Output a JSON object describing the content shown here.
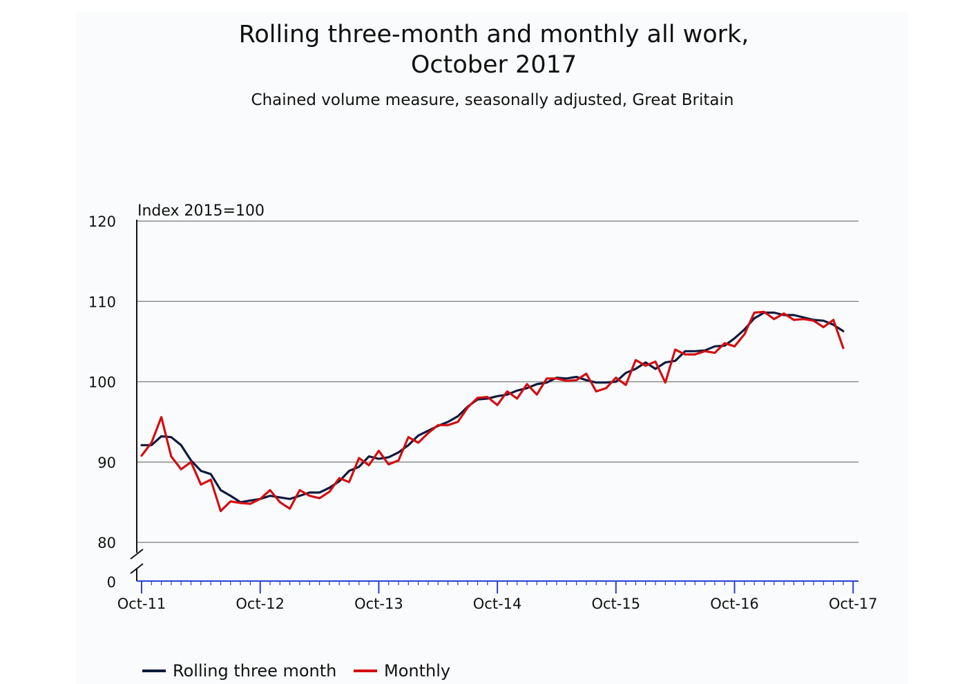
{
  "chart_data": {
    "type": "line",
    "title": "Rolling three-month and monthly all work, October 2017",
    "subtitle": "Chained volume measure, seasonally adjusted, Great Britain",
    "ylabel": "Index 2015=100",
    "y_ticks": [
      "120",
      "110",
      "100",
      "90",
      "80",
      "0"
    ],
    "y_tick_values": [
      120,
      110,
      100,
      90,
      80
    ],
    "ylim": [
      80,
      120
    ],
    "axis_break": true,
    "x_ticks": [
      "Oct-11",
      "Oct-12",
      "Oct-13",
      "Oct-14",
      "Oct-15",
      "Oct-16",
      "Oct-17"
    ],
    "x_start": "Oct-11",
    "grid": true,
    "legend_position": "bottom",
    "series": [
      {
        "name": "Rolling three month",
        "color": "#0b1a3e",
        "values": [
          92.1,
          92.1,
          93.2,
          93.1,
          92.1,
          90.2,
          88.9,
          88.5,
          86.5,
          85.8,
          85.0,
          85.2,
          85.4,
          85.8,
          85.6,
          85.4,
          85.8,
          86.2,
          86.2,
          86.8,
          87.6,
          88.9,
          89.4,
          90.7,
          90.4,
          90.6,
          91.2,
          92.1,
          93.3,
          93.9,
          94.5,
          95.0,
          95.7,
          96.9,
          97.8,
          97.9,
          98.2,
          98.4,
          98.9,
          99.2,
          99.7,
          99.9,
          100.5,
          100.4,
          100.6,
          100.2,
          99.9,
          99.9,
          100.0,
          101.1,
          101.6,
          102.4,
          101.6,
          102.4,
          102.6,
          103.8,
          103.8,
          103.9,
          104.4,
          104.5,
          105.4,
          106.5,
          107.9,
          108.6,
          108.6,
          108.3,
          108.3,
          108.0,
          107.7,
          107.6,
          107.1,
          106.3
        ]
      },
      {
        "name": "Monthly",
        "color": "#d20e12",
        "values": [
          90.8,
          92.4,
          95.6,
          90.7,
          89.1,
          90.0,
          87.2,
          87.8,
          83.9,
          85.1,
          84.9,
          84.8,
          85.4,
          86.5,
          85.0,
          84.2,
          86.5,
          85.8,
          85.5,
          86.3,
          88.0,
          87.5,
          90.5,
          89.6,
          91.4,
          89.7,
          90.2,
          93.1,
          92.4,
          93.6,
          94.6,
          94.6,
          95.0,
          96.8,
          98.0,
          98.1,
          97.1,
          98.8,
          97.9,
          99.7,
          98.4,
          100.4,
          100.4,
          100.1,
          100.2,
          101.0,
          98.8,
          99.2,
          100.5,
          99.6,
          102.7,
          102.0,
          102.5,
          99.9,
          104.0,
          103.4,
          103.4,
          103.8,
          103.6,
          104.8,
          104.4,
          105.9,
          108.6,
          108.7,
          107.8,
          108.5,
          107.7,
          107.8,
          107.6,
          106.8,
          107.7,
          104.2
        ]
      }
    ]
  }
}
